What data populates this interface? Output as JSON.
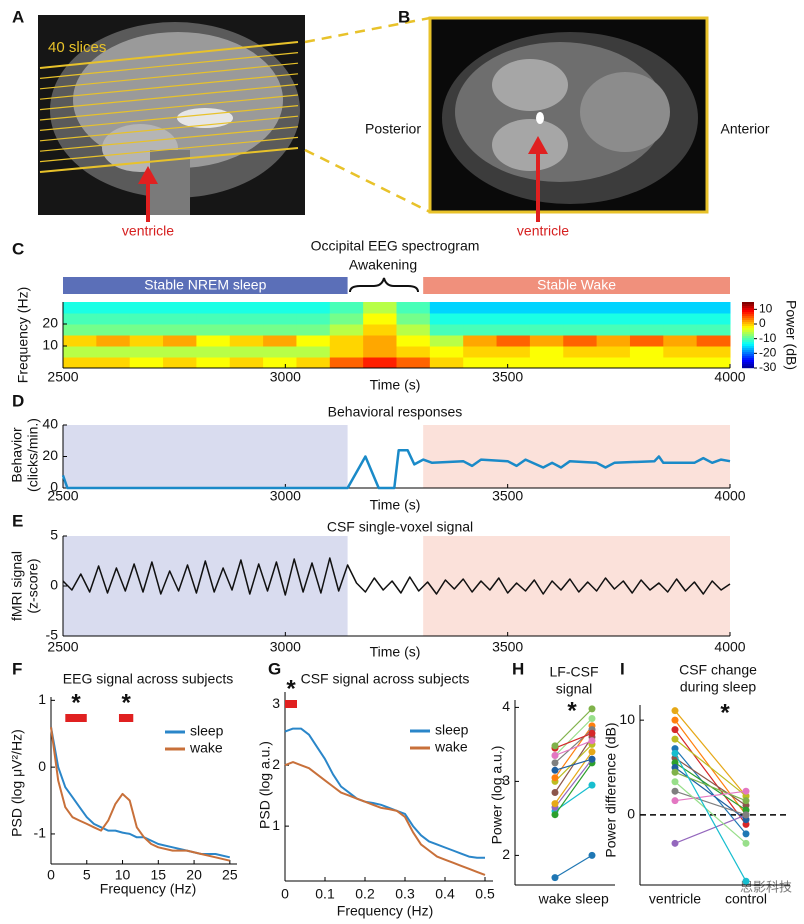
{
  "images": [
    {
      "panel": "A",
      "labels": [
        "40 slices",
        "ventricle"
      ]
    },
    {
      "panel": "B",
      "labels": [
        "Posterior",
        "Anterior",
        "ventricle"
      ]
    }
  ],
  "watermark": "思影科技",
  "chart_data": [
    {
      "type": "heatmap",
      "panel": "C",
      "title": "Occipital EEG spectrogram",
      "annotation": "Awakening",
      "stages": [
        {
          "label": "Stable NREM sleep",
          "from": 2500,
          "to": 3140,
          "color": "#5b6fb8"
        },
        {
          "label": "Stable Wake",
          "from": 3310,
          "to": 4000,
          "color": "#f0907c"
        }
      ],
      "xlabel": "Time (s)",
      "ylabel": "Frequency (Hz)",
      "xlim": [
        2500,
        4000
      ],
      "ylim": [
        0,
        30
      ],
      "xticks": [
        2500,
        3000,
        3500,
        4000
      ],
      "yticks": [
        10,
        20
      ],
      "xbins": [
        2500,
        2575,
        2650,
        2725,
        2800,
        2875,
        2950,
        3025,
        3100,
        3175,
        3250,
        3325,
        3400,
        3475,
        3550,
        3625,
        3700,
        3775,
        3850,
        3925,
        4000
      ],
      "ybins": [
        0,
        5,
        10,
        15,
        20,
        25,
        30
      ],
      "z": [
        [
          0,
          0,
          -2,
          0,
          -2,
          0,
          -2,
          0,
          5,
          8,
          5,
          0,
          -2,
          -2,
          -2,
          -2,
          -2,
          -2,
          -2,
          -2
        ],
        [
          -5,
          -5,
          -5,
          -5,
          -5,
          -5,
          -5,
          -5,
          0,
          2,
          0,
          -2,
          0,
          0,
          -2,
          0,
          0,
          -2,
          0,
          0
        ],
        [
          0,
          2,
          0,
          2,
          -2,
          0,
          2,
          -2,
          0,
          2,
          -2,
          -5,
          2,
          5,
          2,
          5,
          2,
          5,
          2,
          5
        ],
        [
          -8,
          -8,
          -8,
          -8,
          -8,
          -8,
          -8,
          -8,
          -5,
          0,
          -5,
          -10,
          -10,
          -10,
          -10,
          -10,
          -10,
          -10,
          -10,
          -10
        ],
        [
          -10,
          -10,
          -10,
          -10,
          -10,
          -10,
          -10,
          -10,
          -8,
          -2,
          -8,
          -12,
          -12,
          -12,
          -12,
          -12,
          -12,
          -12,
          -12,
          -12
        ],
        [
          -12,
          -12,
          -12,
          -12,
          -12,
          -12,
          -12,
          -12,
          -10,
          -5,
          -10,
          -15,
          -15,
          -15,
          -15,
          -15,
          -15,
          -15,
          -15,
          -15
        ]
      ],
      "zlim": [
        -30,
        15
      ],
      "zticks": [
        10,
        0,
        -10,
        -20,
        -30
      ],
      "colorbar_label": "Power (dB)"
    },
    {
      "type": "line",
      "panel": "D",
      "title": "Behavioral responses",
      "xlabel": "Time (s)",
      "ylabel": [
        "Behavior",
        "(clicks/min.)"
      ],
      "xlim": [
        2500,
        4000
      ],
      "ylim": [
        0,
        40
      ],
      "xticks": [
        2500,
        3000,
        3500,
        4000
      ],
      "yticks": [
        0,
        20,
        40
      ],
      "shaded": [
        {
          "from": 2500,
          "to": 3140,
          "color": "#d9dcef"
        },
        {
          "from": 3310,
          "to": 4000,
          "color": "#fbe1da"
        }
      ],
      "color": "#1a8ac8",
      "x": [
        2500,
        2510,
        3140,
        3180,
        3210,
        3245,
        3255,
        3275,
        3290,
        3310,
        3330,
        3400,
        3420,
        3440,
        3500,
        3520,
        3540,
        3580,
        3600,
        3620,
        3640,
        3700,
        3720,
        3740,
        3830,
        3840,
        3850,
        3920,
        3940,
        3960,
        3980,
        4000
      ],
      "values": [
        8,
        0,
        0,
        20,
        0,
        0,
        24,
        24,
        15,
        18,
        16,
        17,
        14,
        18,
        17,
        14,
        18,
        13,
        16,
        13,
        17,
        16,
        13,
        16,
        17,
        20,
        16,
        16,
        19,
        16,
        18,
        17
      ]
    },
    {
      "type": "line",
      "panel": "E",
      "title": "CSF single-voxel signal",
      "xlabel": "Time (s)",
      "ylabel": [
        "fMRI signal",
        "(z-score)"
      ],
      "xlim": [
        2500,
        4000
      ],
      "ylim": [
        -5,
        5
      ],
      "xticks": [
        2500,
        3000,
        3500,
        4000
      ],
      "yticks": [
        -5,
        0,
        5
      ],
      "shaded": [
        {
          "from": 2500,
          "to": 3140,
          "color": "#d9dcef"
        },
        {
          "from": 3310,
          "to": 4000,
          "color": "#fbe1da"
        }
      ],
      "color": "#111111",
      "x": [
        2500,
        2520,
        2540,
        2560,
        2580,
        2600,
        2620,
        2640,
        2660,
        2680,
        2700,
        2720,
        2740,
        2760,
        2780,
        2800,
        2820,
        2840,
        2860,
        2880,
        2900,
        2920,
        2940,
        2960,
        2980,
        3000,
        3020,
        3040,
        3060,
        3080,
        3100,
        3120,
        3140,
        3160,
        3180,
        3200,
        3220,
        3240,
        3260,
        3280,
        3300,
        3320,
        3340,
        3360,
        3380,
        3400,
        3420,
        3440,
        3460,
        3480,
        3500,
        3520,
        3540,
        3560,
        3580,
        3600,
        3620,
        3640,
        3660,
        3680,
        3700,
        3720,
        3740,
        3760,
        3780,
        3800,
        3820,
        3840,
        3860,
        3880,
        3900,
        3920,
        3940,
        3960,
        3980,
        4000
      ],
      "values": [
        0.5,
        -0.4,
        1.2,
        -0.6,
        2.0,
        -0.7,
        1.8,
        -0.5,
        2.2,
        -0.6,
        2.4,
        -0.8,
        1.5,
        -0.5,
        2.1,
        -0.7,
        2.5,
        -0.6,
        1.8,
        -0.4,
        2.6,
        -0.8,
        2.2,
        -0.5,
        2.4,
        -0.9,
        2.7,
        -0.6,
        2.3,
        -0.7,
        2.8,
        -0.5,
        2.1,
        0.3,
        -0.6,
        0.8,
        -0.4,
        0.5,
        -0.7,
        0.9,
        -0.5,
        0.4,
        -0.8,
        0.6,
        -0.3,
        0.7,
        -0.6,
        0.5,
        -0.4,
        0.8,
        -0.7,
        0.3,
        -0.5,
        0.6,
        -0.8,
        0.5,
        -0.4,
        0.7,
        -0.6,
        0.4,
        -0.5,
        0.8,
        -0.3,
        0.5,
        -0.7,
        0.6,
        -0.4,
        0.3,
        -0.6,
        0.7,
        -0.5,
        0.4,
        -0.8,
        0.5,
        -0.4,
        0.2
      ]
    },
    {
      "type": "line",
      "panel": "F",
      "title": "EEG signal across subjects",
      "xlabel": "Frequency (Hz)",
      "ylabel": "PSD (log μV²/Hz)",
      "xlim": [
        0,
        26
      ],
      "ylim": [
        -1.45,
        1.05
      ],
      "xticks": [
        0,
        5,
        10,
        15,
        20,
        25
      ],
      "yticks": [
        -1,
        0,
        1
      ],
      "sig_ranges": [
        [
          2,
          5
        ],
        [
          9.5,
          11.5
        ]
      ],
      "annotations": [
        "*",
        "*"
      ],
      "x": [
        0,
        1,
        2,
        3,
        4,
        5,
        6,
        7,
        8,
        9,
        10,
        11,
        12,
        13,
        14,
        15,
        17,
        19,
        21,
        23,
        25
      ],
      "series": [
        {
          "name": "sleep",
          "color": "#2a86c9",
          "values": [
            0.6,
            0.0,
            -0.3,
            -0.45,
            -0.6,
            -0.75,
            -0.85,
            -0.9,
            -0.95,
            -0.95,
            -0.98,
            -1.0,
            -1.05,
            -1.05,
            -1.1,
            -1.15,
            -1.2,
            -1.25,
            -1.3,
            -1.3,
            -1.35
          ]
        },
        {
          "name": "wake",
          "color": "#c8703a",
          "values": [
            0.6,
            -0.2,
            -0.6,
            -0.75,
            -0.8,
            -0.85,
            -0.9,
            -0.95,
            -0.8,
            -0.55,
            -0.4,
            -0.5,
            -0.9,
            -1.05,
            -1.15,
            -1.2,
            -1.25,
            -1.25,
            -1.3,
            -1.35,
            -1.4
          ]
        }
      ]
    },
    {
      "type": "line",
      "panel": "G",
      "title": "CSF signal across subjects",
      "xlabel": "Frequency (Hz)",
      "ylabel": "PSD (log a.u.)",
      "xlim": [
        0,
        0.52
      ],
      "ylim": [
        0.1,
        3.2
      ],
      "xticks": [
        0,
        0.1,
        0.2,
        0.3,
        0.4,
        0.5
      ],
      "yticks": [
        1,
        2,
        3
      ],
      "sig_ranges": [
        [
          0,
          0.03
        ]
      ],
      "annotations": [
        "*"
      ],
      "x": [
        0,
        0.02,
        0.04,
        0.06,
        0.08,
        0.1,
        0.12,
        0.14,
        0.16,
        0.18,
        0.2,
        0.22,
        0.24,
        0.26,
        0.28,
        0.3,
        0.32,
        0.34,
        0.36,
        0.38,
        0.4,
        0.42,
        0.44,
        0.46,
        0.48,
        0.5
      ],
      "series": [
        {
          "name": "sleep",
          "color": "#2a86c9",
          "values": [
            2.55,
            2.6,
            2.6,
            2.5,
            2.3,
            2.1,
            1.85,
            1.65,
            1.55,
            1.45,
            1.4,
            1.38,
            1.35,
            1.3,
            1.25,
            1.2,
            1.0,
            0.85,
            0.75,
            0.7,
            0.65,
            0.6,
            0.55,
            0.5,
            0.48,
            0.48
          ]
        },
        {
          "name": "wake",
          "color": "#c8703a",
          "values": [
            2.0,
            2.05,
            2.0,
            1.95,
            1.85,
            1.75,
            1.65,
            1.55,
            1.5,
            1.45,
            1.4,
            1.35,
            1.3,
            1.28,
            1.25,
            1.15,
            0.9,
            0.7,
            0.6,
            0.5,
            0.45,
            0.4,
            0.35,
            0.3,
            0.25,
            0.2
          ]
        }
      ]
    },
    {
      "type": "paired",
      "panel": "H",
      "title": [
        "LF-CSF",
        "signal"
      ],
      "ylabel": "Power (log a.u.)",
      "annotations": [
        "*"
      ],
      "categories": [
        "wake",
        "sleep"
      ],
      "ylim": [
        1.6,
        4.1
      ],
      "yticks": [
        2,
        3,
        4
      ],
      "series": [
        {
          "color": "#1f77b4",
          "values": [
            1.7,
            2.0
          ]
        },
        {
          "color": "#17becf",
          "values": [
            2.6,
            2.95
          ]
        },
        {
          "color": "#2ca02c",
          "values": [
            2.55,
            3.25
          ]
        },
        {
          "color": "#9467bd",
          "values": [
            2.65,
            3.3
          ]
        },
        {
          "color": "#e6a817",
          "values": [
            2.7,
            3.4
          ]
        },
        {
          "color": "#8c564b",
          "values": [
            2.85,
            3.6
          ]
        },
        {
          "color": "#bcbd22",
          "values": [
            3.0,
            3.5
          ]
        },
        {
          "color": "#ff7f0e",
          "values": [
            3.05,
            3.75
          ]
        },
        {
          "color": "#1f5fa0",
          "values": [
            3.15,
            3.3
          ]
        },
        {
          "color": "#7f7f7f",
          "values": [
            3.25,
            3.7
          ]
        },
        {
          "color": "#98df8a",
          "values": [
            3.35,
            3.85
          ]
        },
        {
          "color": "#d62728",
          "values": [
            3.45,
            3.65
          ]
        },
        {
          "color": "#7fb24a",
          "values": [
            3.48,
            3.98
          ]
        },
        {
          "color": "#e377c2",
          "values": [
            3.35,
            3.55
          ]
        }
      ]
    },
    {
      "type": "paired",
      "panel": "I",
      "title": [
        "CSF change",
        "during sleep"
      ],
      "ylabel": "Power difference (dB)",
      "annotations": [
        "*"
      ],
      "categories": [
        "ventricle",
        "control"
      ],
      "ylim": [
        -7.4,
        11.6
      ],
      "yticks": [
        0,
        10
      ],
      "refline": 0,
      "series": [
        {
          "color": "#e6a817",
          "values": [
            11,
            2
          ]
        },
        {
          "color": "#ff7f0e",
          "values": [
            10,
            0
          ]
        },
        {
          "color": "#d62728",
          "values": [
            9,
            -1
          ]
        },
        {
          "color": "#bcbd22",
          "values": [
            8,
            2
          ]
        },
        {
          "color": "#1f77b4",
          "values": [
            7,
            -2
          ]
        },
        {
          "color": "#8c564b",
          "values": [
            6,
            1
          ]
        },
        {
          "color": "#2ca02c",
          "values": [
            5.5,
            0.5
          ]
        },
        {
          "color": "#1f5fa0",
          "values": [
            5,
            -0.5
          ]
        },
        {
          "color": "#7fb24a",
          "values": [
            4.5,
            1.5
          ]
        },
        {
          "color": "#9467bd",
          "values": [
            -3,
            0
          ]
        },
        {
          "color": "#7f7f7f",
          "values": [
            2.5,
            0
          ]
        },
        {
          "color": "#e377c2",
          "values": [
            1.5,
            2.5
          ]
        },
        {
          "color": "#98df8a",
          "values": [
            3.5,
            -3
          ]
        },
        {
          "color": "#17becf",
          "values": [
            6.5,
            -7
          ]
        }
      ]
    }
  ]
}
